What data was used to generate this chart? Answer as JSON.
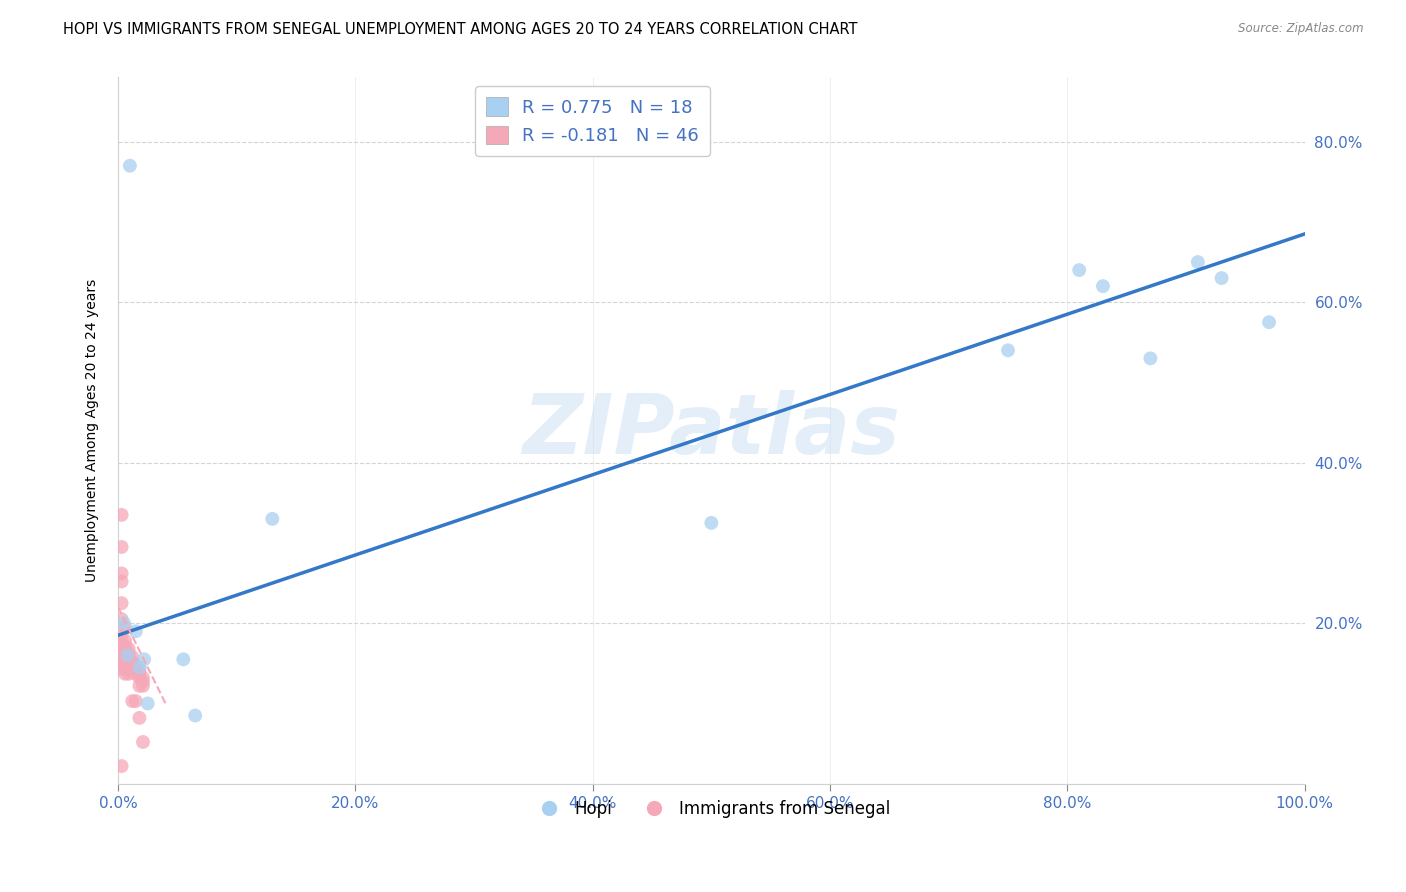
{
  "title": "HOPI VS IMMIGRANTS FROM SENEGAL UNEMPLOYMENT AMONG AGES 20 TO 24 YEARS CORRELATION CHART",
  "source": "Source: ZipAtlas.com",
  "ylabel": "Unemployment Among Ages 20 to 24 years",
  "xlim": [
    0,
    1.0
  ],
  "ylim": [
    0,
    0.88
  ],
  "xticks": [
    0.0,
    0.2,
    0.4,
    0.6,
    0.8,
    1.0
  ],
  "yticks": [
    0.0,
    0.2,
    0.4,
    0.6,
    0.8
  ],
  "xtick_labels": [
    "0.0%",
    "20.0%",
    "40.0%",
    "60.0%",
    "80.0%",
    "100.0%"
  ],
  "ytick_labels_right": [
    "",
    "20.0%",
    "40.0%",
    "60.0%",
    "80.0%"
  ],
  "hopi_color": "#a8d0f0",
  "senegal_color": "#f5a8b8",
  "hopi_r": 0.775,
  "hopi_n": 18,
  "senegal_r": -0.181,
  "senegal_n": 46,
  "watermark": "ZIPatlas",
  "hopi_x": [
    0.005,
    0.008,
    0.015,
    0.018,
    0.022,
    0.025,
    0.055,
    0.065,
    0.01,
    0.13,
    0.5,
    0.75,
    0.81,
    0.83,
    0.87,
    0.91,
    0.93,
    0.97
  ],
  "hopi_y": [
    0.2,
    0.16,
    0.19,
    0.145,
    0.155,
    0.1,
    0.155,
    0.085,
    0.77,
    0.33,
    0.325,
    0.54,
    0.64,
    0.62,
    0.53,
    0.65,
    0.63,
    0.575
  ],
  "senegal_x": [
    0.003,
    0.003,
    0.003,
    0.003,
    0.003,
    0.003,
    0.003,
    0.003,
    0.003,
    0.003,
    0.003,
    0.006,
    0.006,
    0.006,
    0.006,
    0.006,
    0.006,
    0.006,
    0.006,
    0.009,
    0.009,
    0.009,
    0.009,
    0.009,
    0.009,
    0.009,
    0.012,
    0.012,
    0.012,
    0.012,
    0.015,
    0.015,
    0.015,
    0.015,
    0.018,
    0.018,
    0.018,
    0.018,
    0.018,
    0.021,
    0.021,
    0.021,
    0.021,
    0.003,
    0.003,
    0.003
  ],
  "senegal_y": [
    0.335,
    0.295,
    0.225,
    0.205,
    0.185,
    0.175,
    0.165,
    0.16,
    0.155,
    0.148,
    0.143,
    0.195,
    0.178,
    0.172,
    0.163,
    0.158,
    0.152,
    0.143,
    0.137,
    0.168,
    0.162,
    0.157,
    0.152,
    0.147,
    0.142,
    0.137,
    0.158,
    0.152,
    0.147,
    0.103,
    0.148,
    0.142,
    0.137,
    0.103,
    0.142,
    0.137,
    0.132,
    0.122,
    0.082,
    0.132,
    0.127,
    0.122,
    0.052,
    0.252,
    0.262,
    0.022
  ],
  "hopi_trend_x": [
    0.0,
    1.0
  ],
  "hopi_trend_y": [
    0.185,
    0.685
  ],
  "senegal_trend_x": [
    0.0,
    0.04
  ],
  "senegal_trend_y": [
    0.22,
    0.1
  ],
  "marker_size": 100,
  "title_fontsize": 10.5,
  "axis_fontsize": 10,
  "tick_fontsize": 11,
  "legend_fontsize": 13
}
